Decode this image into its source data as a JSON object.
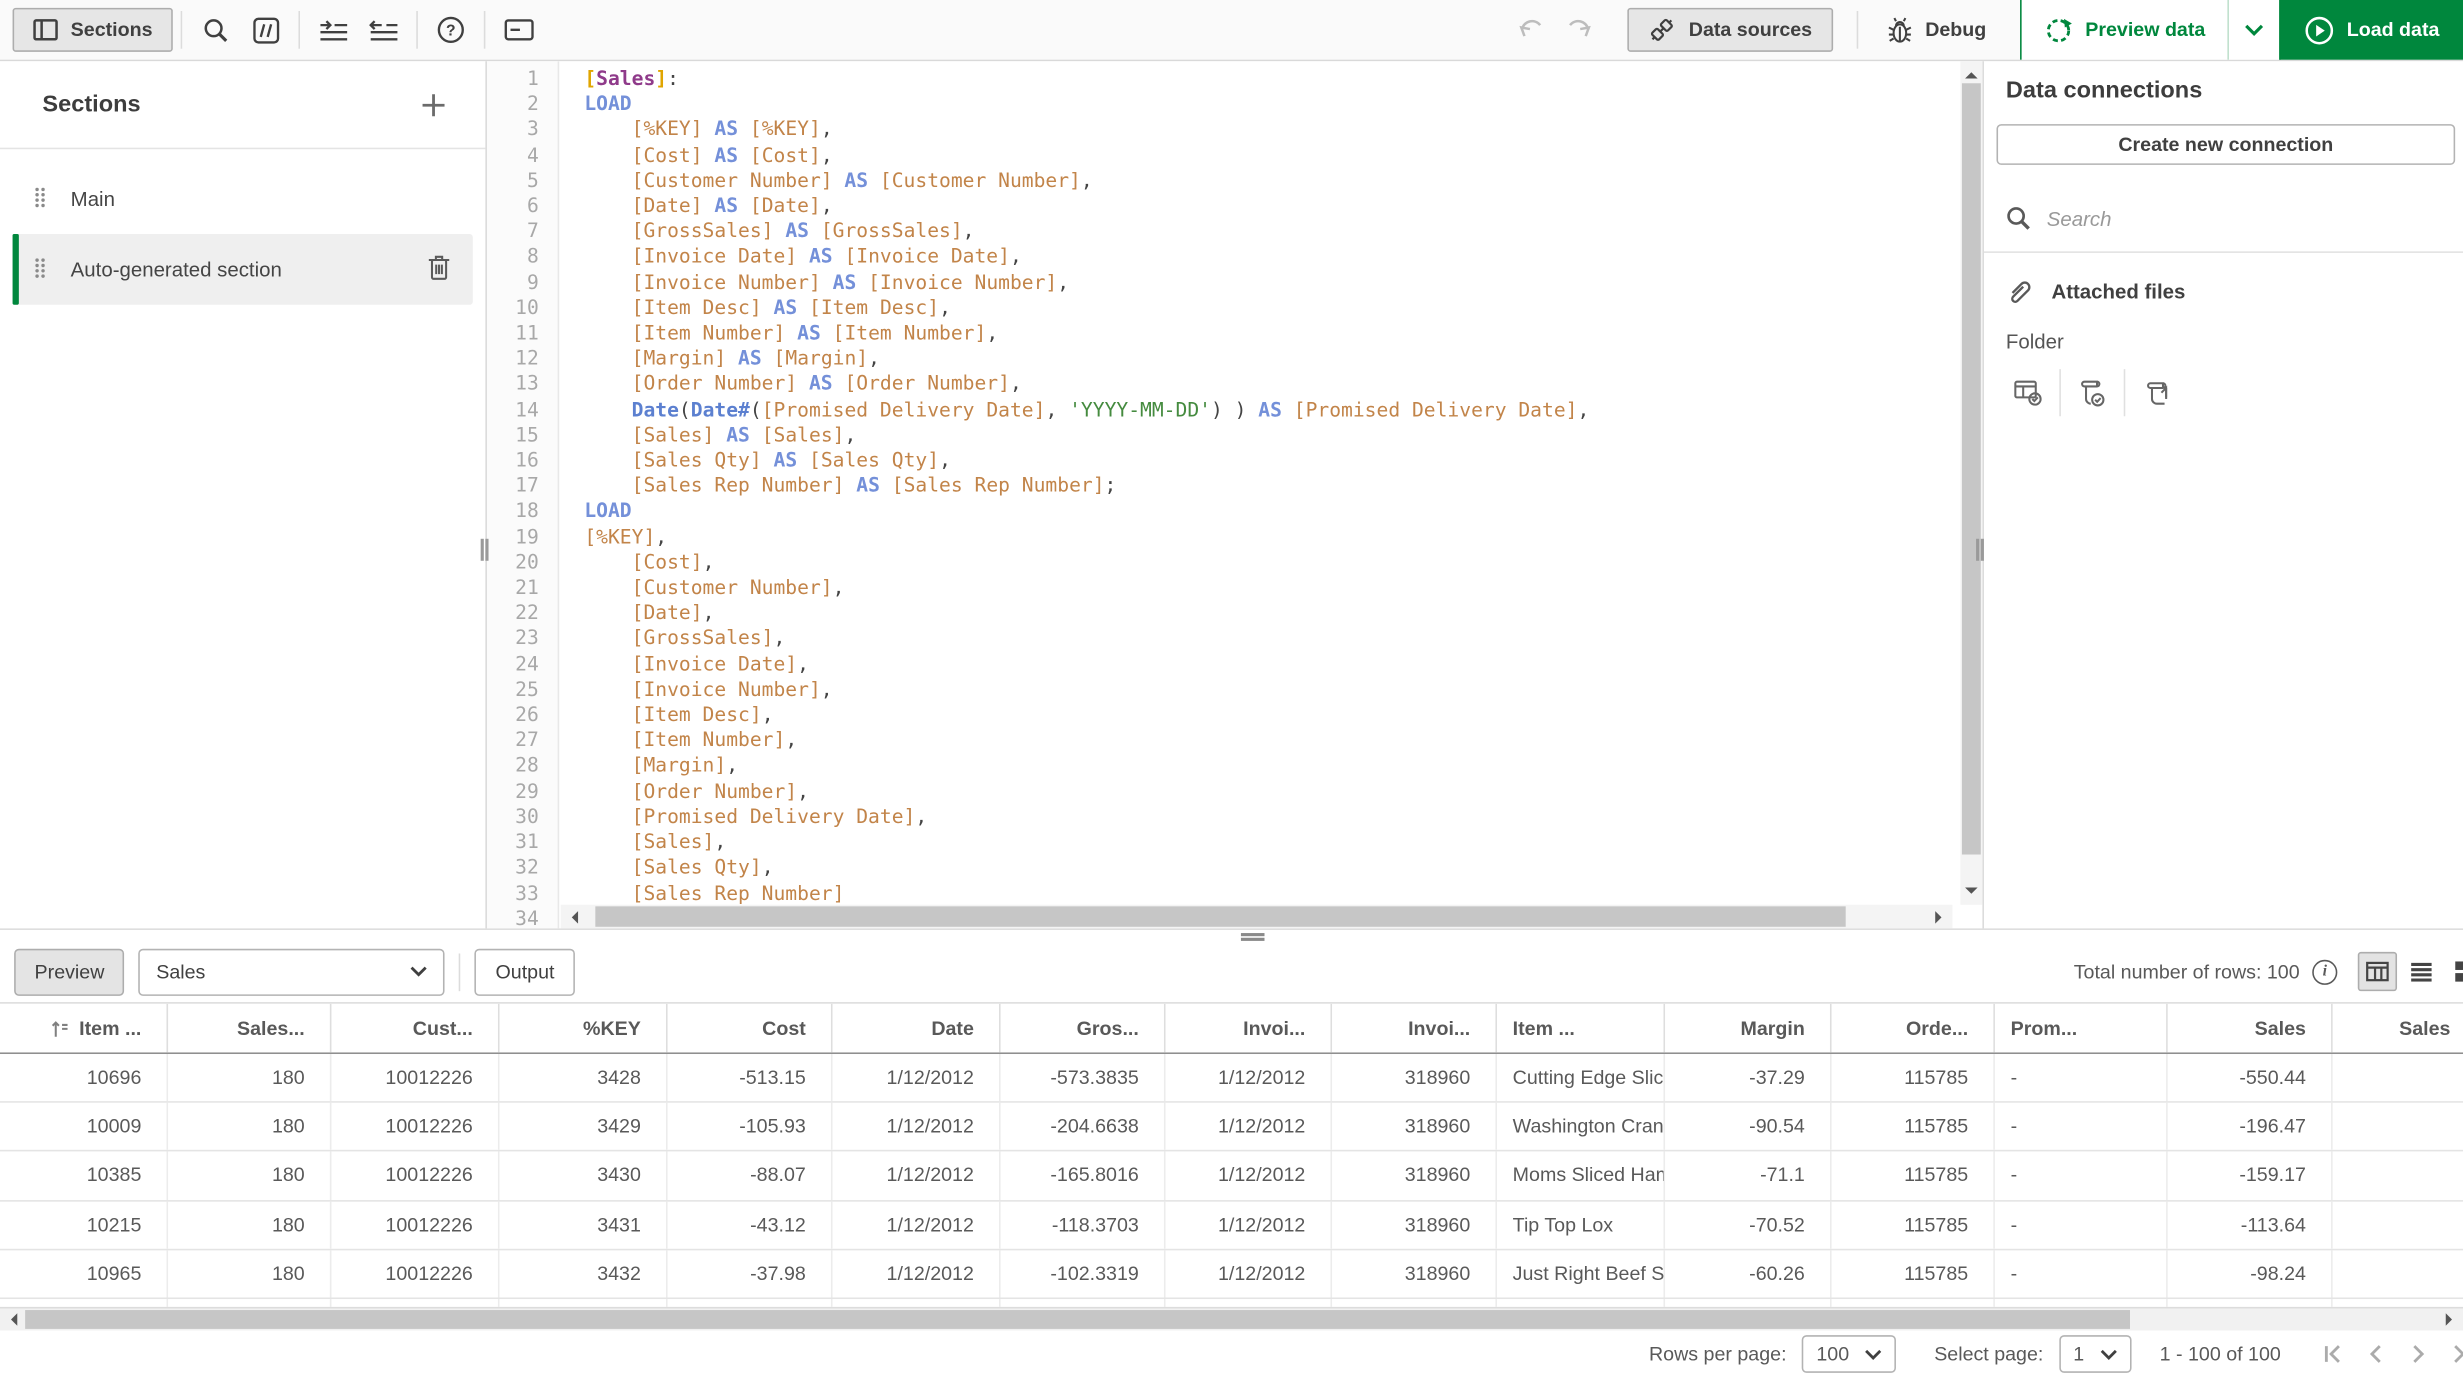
{
  "toolbar": {
    "sections": "Sections",
    "data_sources": "Data sources",
    "debug": "Debug",
    "preview_data": "Preview data",
    "load_data": "Load data"
  },
  "sidebar": {
    "title": "Sections",
    "items": [
      {
        "label": "Main",
        "selected": false
      },
      {
        "label": "Auto-generated section",
        "selected": true
      }
    ]
  },
  "editor": {
    "lines": [
      "[Sales]:",
      "LOAD",
      "    [%KEY] AS [%KEY],",
      "    [Cost] AS [Cost],",
      "    [Customer Number] AS [Customer Number],",
      "    [Date] AS [Date],",
      "    [GrossSales] AS [GrossSales],",
      "    [Invoice Date] AS [Invoice Date],",
      "    [Invoice Number] AS [Invoice Number],",
      "    [Item Desc] AS [Item Desc],",
      "    [Item Number] AS [Item Number],",
      "    [Margin] AS [Margin],",
      "    [Order Number] AS [Order Number],",
      "    Date(Date#([Promised Delivery Date], 'YYYY-MM-DD') ) AS [Promised Delivery Date],",
      "    [Sales] AS [Sales],",
      "    [Sales Qty] AS [Sales Qty],",
      "    [Sales Rep Number] AS [Sales Rep Number];",
      "LOAD",
      "[%KEY],",
      "    [Cost],",
      "    [Customer Number],",
      "    [Date],",
      "    [GrossSales],",
      "    [Invoice Date],",
      "    [Invoice Number],",
      "    [Item Desc],",
      "    [Item Number],",
      "    [Margin],",
      "    [Order Number],",
      "    [Promised Delivery Date],",
      "    [Sales],",
      "    [Sales Qty],",
      "    [Sales Rep Number]",
      ""
    ]
  },
  "connections": {
    "title": "Data connections",
    "create_button": "Create new connection",
    "search_placeholder": "Search",
    "attached_files": "Attached files",
    "folder_label": "Folder"
  },
  "preview": {
    "preview_button": "Preview",
    "table_selector_value": "Sales",
    "output_button": "Output",
    "total_rows": "Total number of rows: 100"
  },
  "table": {
    "columns": [
      {
        "label": "Item ...",
        "align": "right"
      },
      {
        "label": "Sales...",
        "align": "right"
      },
      {
        "label": "Cust...",
        "align": "right"
      },
      {
        "label": "%KEY",
        "align": "right"
      },
      {
        "label": "Cost",
        "align": "right"
      },
      {
        "label": "Date",
        "align": "right"
      },
      {
        "label": "Gros...",
        "align": "right"
      },
      {
        "label": "Invoi...",
        "align": "right"
      },
      {
        "label": "Invoi...",
        "align": "right"
      },
      {
        "label": "Item ...",
        "align": "left"
      },
      {
        "label": "Margin",
        "align": "right"
      },
      {
        "label": "Orde...",
        "align": "right"
      },
      {
        "label": "Prom...",
        "align": "left"
      },
      {
        "label": "Sales",
        "align": "right"
      },
      {
        "label": "Sales",
        "align": "right"
      }
    ],
    "rows": [
      [
        "10696",
        "180",
        "10012226",
        "3428",
        "-513.15",
        "1/12/2012",
        "-573.3835",
        "1/12/2012",
        "318960",
        "Cutting Edge Slice",
        "-37.29",
        "115785",
        "-",
        "-550.44",
        ""
      ],
      [
        "10009",
        "180",
        "10012226",
        "3429",
        "-105.93",
        "1/12/2012",
        "-204.6638",
        "1/12/2012",
        "318960",
        "Washington Cranb",
        "-90.54",
        "115785",
        "-",
        "-196.47",
        ""
      ],
      [
        "10385",
        "180",
        "10012226",
        "3430",
        "-88.07",
        "1/12/2012",
        "-165.8016",
        "1/12/2012",
        "318960",
        "Moms Sliced Ham",
        "-71.1",
        "115785",
        "-",
        "-159.17",
        ""
      ],
      [
        "10215",
        "180",
        "10012226",
        "3431",
        "-43.12",
        "1/12/2012",
        "-118.3703",
        "1/12/2012",
        "318960",
        "Tip Top Lox",
        "-70.52",
        "115785",
        "-",
        "-113.64",
        ""
      ],
      [
        "10965",
        "180",
        "10012226",
        "3432",
        "-37.98",
        "1/12/2012",
        "-102.3319",
        "1/12/2012",
        "318960",
        "Just Right Beef So",
        "-60.26",
        "115785",
        "-",
        "-98.24",
        ""
      ]
    ]
  },
  "pagination": {
    "rows_per_page_label": "Rows per page:",
    "rows_per_page_value": "100",
    "select_page_label": "Select page:",
    "page_value": "1",
    "range": "1 - 100 of 100"
  },
  "colors": {
    "accent_green": "#00873d",
    "keyword_blue": "#7490d9",
    "function_blue": "#5c80d0",
    "field_orange": "#c28449",
    "string_green": "#458b3f",
    "table_purple": "#8f3a8a",
    "bracket_gold": "#e0a500"
  }
}
